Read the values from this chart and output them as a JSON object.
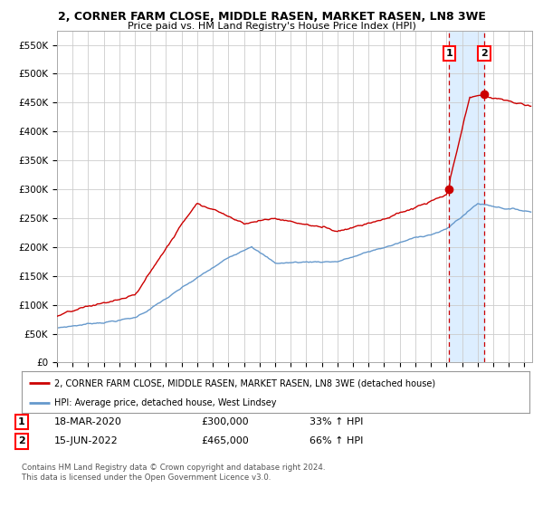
{
  "title": "2, CORNER FARM CLOSE, MIDDLE RASEN, MARKET RASEN, LN8 3WE",
  "subtitle": "Price paid vs. HM Land Registry's House Price Index (HPI)",
  "red_label": "2, CORNER FARM CLOSE, MIDDLE RASEN, MARKET RASEN, LN8 3WE (detached house)",
  "blue_label": "HPI: Average price, detached house, West Lindsey",
  "point1_date": "18-MAR-2020",
  "point1_price": 300000,
  "point1_hpi": "33% ↑ HPI",
  "point2_date": "15-JUN-2022",
  "point2_price": 465000,
  "point2_hpi": "66% ↑ HPI",
  "footer": "Contains HM Land Registry data © Crown copyright and database right 2024.\nThis data is licensed under the Open Government Licence v3.0.",
  "ylim": [
    0,
    575000
  ],
  "yticks": [
    0,
    50000,
    100000,
    150000,
    200000,
    250000,
    300000,
    350000,
    400000,
    450000,
    500000,
    550000
  ],
  "red_color": "#cc0000",
  "blue_color": "#6699cc",
  "shading_color": "#ddeeff",
  "dashed_line_color": "#cc0000",
  "point_color": "#cc0000",
  "bg_color": "#ffffff",
  "grid_color": "#cccccc"
}
